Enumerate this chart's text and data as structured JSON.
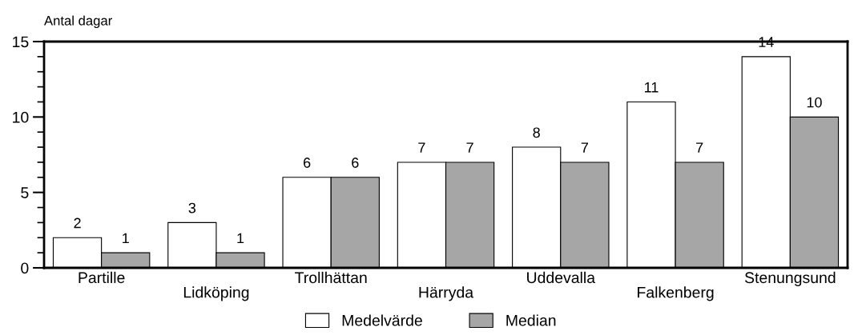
{
  "chart_data": {
    "type": "bar",
    "ylabel": "Antal dagar",
    "categories": [
      "Partille",
      "Lidköping",
      "Trollhättan",
      "Härryda",
      "Uddevalla",
      "Falkenberg",
      "Stenungsund"
    ],
    "series": [
      {
        "name": "Medelvärde",
        "color": "#ffffff",
        "values": [
          2,
          3,
          6,
          7,
          8,
          11,
          14
        ]
      },
      {
        "name": "Median",
        "color": "#a6a6a6",
        "values": [
          1,
          1,
          6,
          7,
          7,
          7,
          10
        ]
      }
    ],
    "ylim": [
      0,
      15
    ],
    "yticks": [
      0,
      5,
      10,
      15
    ],
    "data_labels": true,
    "grid": false,
    "legend": "bottom"
  }
}
